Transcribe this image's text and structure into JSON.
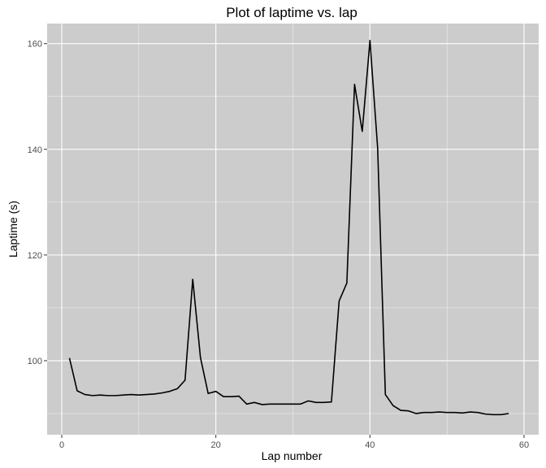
{
  "chart_data": {
    "type": "line",
    "title": "Plot of laptime vs. lap",
    "xlabel": "Lap number",
    "ylabel": "Laptime (s)",
    "xlim": [
      -1.9,
      61.9
    ],
    "ylim": [
      86.0,
      163.8
    ],
    "x_ticks": [
      0,
      20,
      40,
      60
    ],
    "y_ticks": [
      100,
      120,
      140,
      160
    ],
    "background": "#cccccc",
    "grid": true,
    "line_color": "#000000",
    "series": [
      {
        "x": [
          1,
          2,
          3,
          4,
          5,
          6,
          7,
          8,
          9,
          10,
          11,
          12,
          13,
          14,
          15,
          16,
          17,
          18,
          19,
          20,
          21,
          22,
          23,
          24,
          25,
          26,
          27,
          28,
          29,
          30,
          31,
          32,
          33,
          34,
          35,
          36,
          37,
          38,
          39,
          40,
          41,
          42,
          43,
          44,
          45,
          46,
          47,
          48,
          49,
          50,
          51,
          52,
          53,
          54,
          55,
          56,
          57,
          58
        ],
        "values": [
          100.5,
          94.3,
          93.6,
          93.4,
          93.5,
          93.4,
          93.4,
          93.5,
          93.6,
          93.5,
          93.6,
          93.7,
          93.9,
          94.2,
          94.7,
          96.3,
          115.4,
          100.6,
          93.8,
          94.2,
          93.2,
          93.2,
          93.3,
          91.8,
          92.1,
          91.7,
          91.8,
          91.8,
          91.8,
          91.8,
          91.8,
          92.4,
          92.1,
          92.1,
          92.2,
          111.3,
          114.7,
          152.3,
          143.4,
          160.6,
          140.2,
          93.6,
          91.5,
          90.6,
          90.5,
          90.0,
          90.2,
          90.2,
          90.3,
          90.2,
          90.2,
          90.1,
          90.3,
          90.2,
          89.9,
          89.8,
          89.8,
          90.0
        ]
      }
    ]
  }
}
